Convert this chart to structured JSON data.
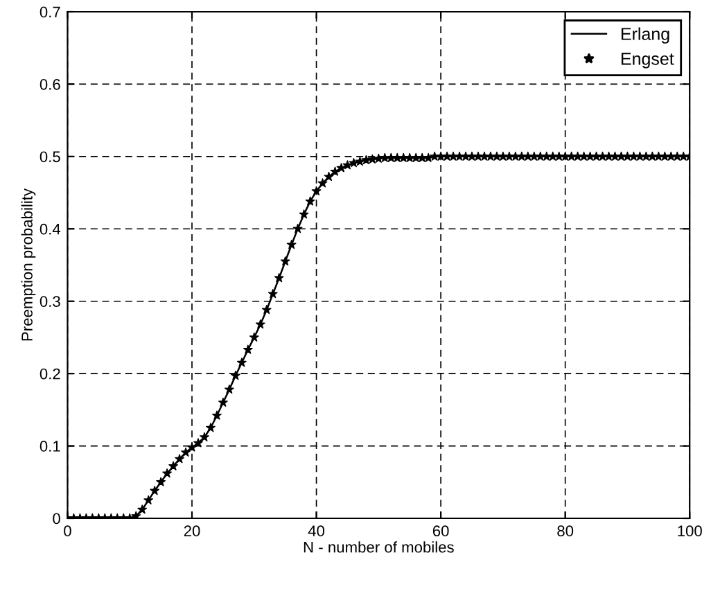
{
  "chart_data": {
    "type": "line",
    "xlabel": "N - number of mobiles",
    "ylabel": "Preemption probability",
    "x": [
      0,
      1,
      2,
      3,
      4,
      5,
      6,
      7,
      8,
      9,
      10,
      11,
      12,
      13,
      14,
      15,
      16,
      17,
      18,
      19,
      20,
      21,
      22,
      23,
      24,
      25,
      26,
      27,
      28,
      29,
      30,
      31,
      32,
      33,
      34,
      35,
      36,
      37,
      38,
      39,
      40,
      41,
      42,
      43,
      44,
      45,
      46,
      47,
      48,
      49,
      50,
      51,
      52,
      53,
      54,
      55,
      56,
      57,
      58,
      59,
      60,
      61,
      62,
      63,
      64,
      65,
      66,
      67,
      68,
      69,
      70,
      71,
      72,
      73,
      74,
      75,
      76,
      77,
      78,
      79,
      80,
      81,
      82,
      83,
      84,
      85,
      86,
      87,
      88,
      89,
      90,
      91,
      92,
      93,
      94,
      95,
      96,
      97,
      98,
      99,
      100
    ],
    "series": [
      {
        "name": "Erlang",
        "color": "#000000",
        "line_style": "solid",
        "marker": "none",
        "values": [
          0,
          0,
          0,
          0,
          0,
          0,
          0,
          0,
          0,
          0,
          0,
          0.003,
          0.012,
          0.025,
          0.038,
          0.05,
          0.062,
          0.072,
          0.082,
          0.091,
          0.098,
          0.104,
          0.112,
          0.125,
          0.142,
          0.16,
          0.178,
          0.197,
          0.215,
          0.233,
          0.25,
          0.268,
          0.288,
          0.31,
          0.332,
          0.355,
          0.378,
          0.4,
          0.42,
          0.438,
          0.452,
          0.463,
          0.472,
          0.479,
          0.484,
          0.488,
          0.491,
          0.493,
          0.495,
          0.496,
          0.497,
          0.498,
          0.498,
          0.498,
          0.498,
          0.498,
          0.498,
          0.498,
          0.498,
          0.5,
          0.5,
          0.5,
          0.5,
          0.5,
          0.5,
          0.5,
          0.5,
          0.5,
          0.5,
          0.5,
          0.5,
          0.5,
          0.5,
          0.5,
          0.5,
          0.5,
          0.5,
          0.5,
          0.5,
          0.5,
          0.5,
          0.5,
          0.5,
          0.5,
          0.5,
          0.5,
          0.5,
          0.5,
          0.5,
          0.5,
          0.5,
          0.5,
          0.5,
          0.5,
          0.5,
          0.5,
          0.5,
          0.5,
          0.5,
          0.5,
          0.5
        ]
      },
      {
        "name": "Engset",
        "type": "scatter",
        "color": "#000000",
        "marker": "star",
        "values": [
          0,
          0,
          0,
          0,
          0,
          0,
          0,
          0,
          0,
          0,
          0,
          0.003,
          0.012,
          0.025,
          0.038,
          0.05,
          0.062,
          0.072,
          0.082,
          0.091,
          0.098,
          0.104,
          0.112,
          0.125,
          0.142,
          0.16,
          0.178,
          0.197,
          0.215,
          0.233,
          0.25,
          0.268,
          0.288,
          0.31,
          0.332,
          0.355,
          0.378,
          0.4,
          0.42,
          0.438,
          0.452,
          0.463,
          0.472,
          0.479,
          0.484,
          0.488,
          0.491,
          0.493,
          0.495,
          0.496,
          0.497,
          0.498,
          0.498,
          0.498,
          0.498,
          0.498,
          0.498,
          0.498,
          0.498,
          0.5,
          0.5,
          0.5,
          0.5,
          0.5,
          0.5,
          0.5,
          0.5,
          0.5,
          0.5,
          0.5,
          0.5,
          0.5,
          0.5,
          0.5,
          0.5,
          0.5,
          0.5,
          0.5,
          0.5,
          0.5,
          0.5,
          0.5,
          0.5,
          0.5,
          0.5,
          0.5,
          0.5,
          0.5,
          0.5,
          0.5,
          0.5,
          0.5,
          0.5,
          0.5,
          0.5,
          0.5,
          0.5,
          0.5,
          0.5,
          0.5,
          0.5
        ]
      }
    ],
    "xlim": [
      0,
      100
    ],
    "xticks": [
      0,
      20,
      40,
      60,
      80,
      100
    ],
    "ylim": [
      0,
      0.7
    ],
    "yticks": [
      0,
      0.1,
      0.2,
      0.3,
      0.4,
      0.5,
      0.6,
      0.7
    ],
    "grid": true,
    "legend": "top right"
  }
}
